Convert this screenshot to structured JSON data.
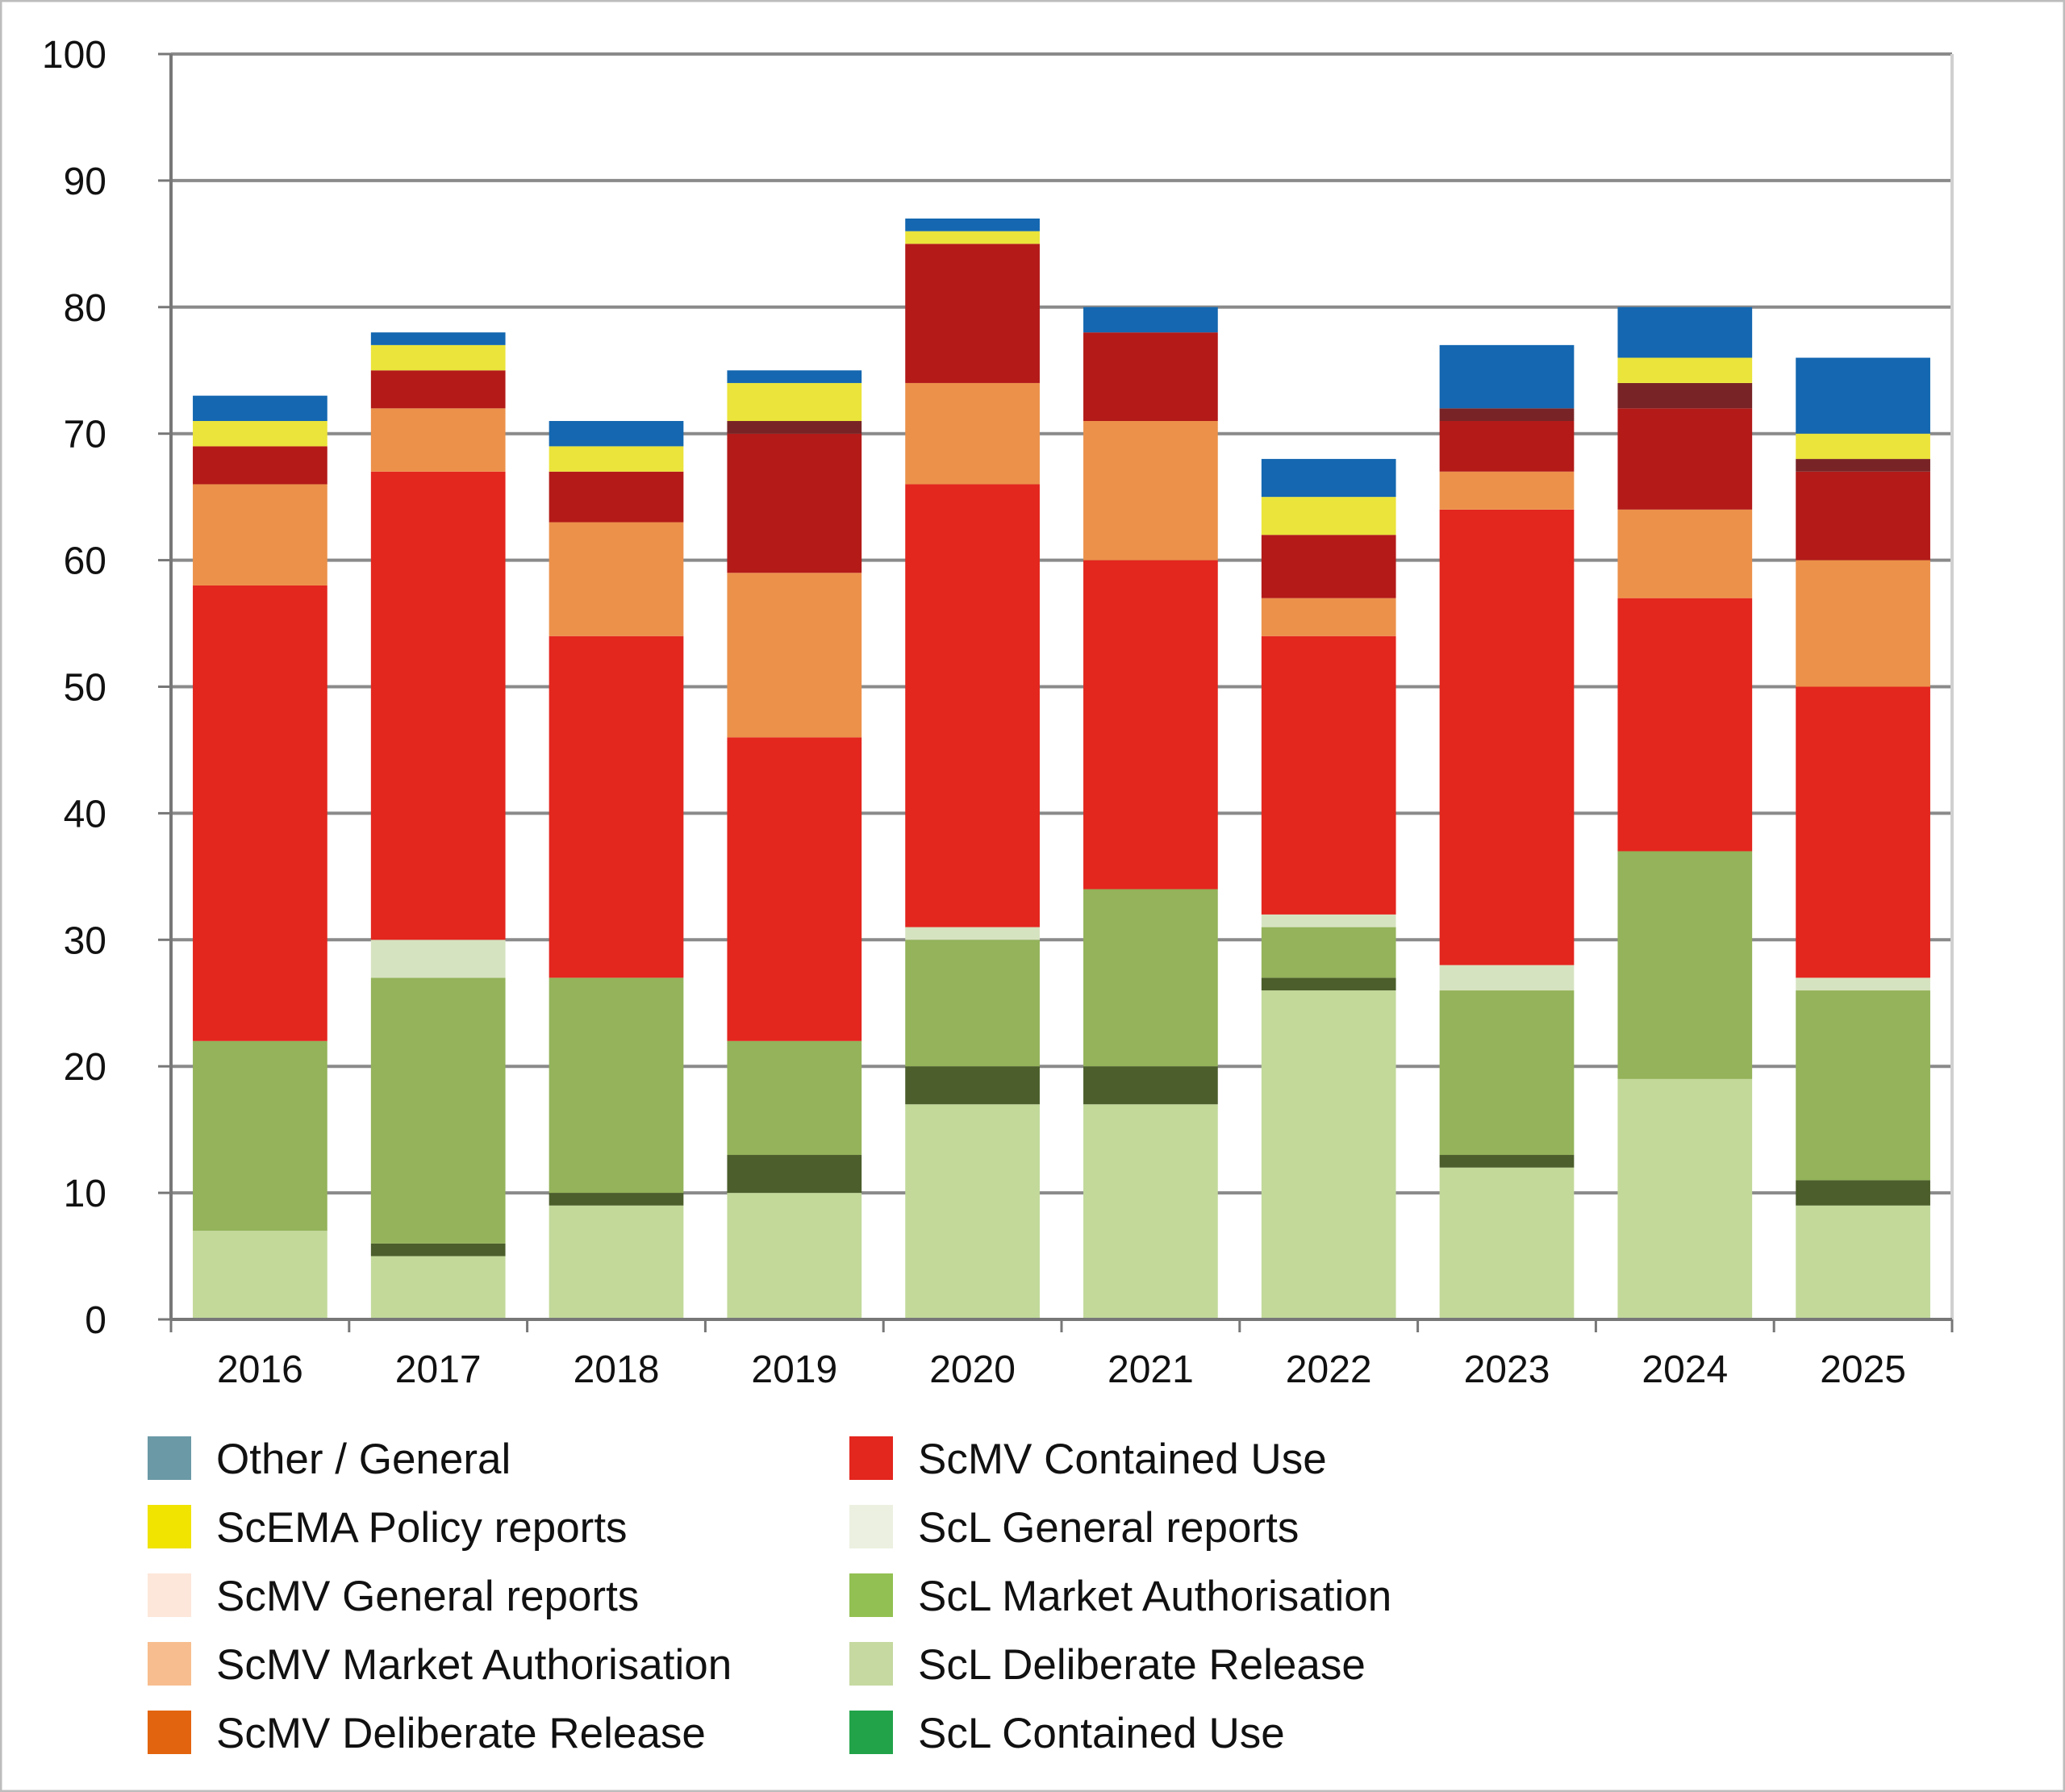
{
  "chart_data": {
    "type": "bar",
    "stacked": true,
    "categories": [
      "2016",
      "2017",
      "2018",
      "2019",
      "2020",
      "2021",
      "2022",
      "2023",
      "2024",
      "2025"
    ],
    "ylim": [
      0,
      100
    ],
    "yticks": [
      0,
      10,
      20,
      30,
      40,
      50,
      60,
      70,
      80,
      90,
      100
    ],
    "grid": true,
    "legend_placement": "bottom",
    "series": [
      {
        "name": "ScL Deliberate Release",
        "color": "#c2d99a",
        "values": [
          7,
          5,
          9,
          10,
          17,
          17,
          26,
          12,
          19,
          9
        ]
      },
      {
        "name": "ScL Contained Use",
        "color": "#4b5e2b",
        "values": [
          0,
          1,
          1,
          3,
          3,
          3,
          1,
          1,
          0,
          2
        ]
      },
      {
        "name": "ScL Market Authorisation",
        "color": "#94b35a",
        "values": [
          15,
          21,
          17,
          9,
          10,
          14,
          4,
          13,
          18,
          15
        ]
      },
      {
        "name": "ScL General reports",
        "color": "#d6e3c0",
        "values": [
          0,
          3,
          0,
          0,
          1,
          0,
          1,
          2,
          0,
          1
        ]
      },
      {
        "name": "ScMV Contained Use",
        "color": "#e3261e",
        "values": [
          36,
          37,
          27,
          24,
          35,
          26,
          22,
          36,
          20,
          23
        ]
      },
      {
        "name": "ScMV Market Authorisation",
        "color": "#ec914a",
        "values": [
          8,
          5,
          9,
          13,
          8,
          11,
          3,
          3,
          7,
          10
        ]
      },
      {
        "name": "ScMV Deliberate Release",
        "color": "#b31a18",
        "values": [
          3,
          3,
          4,
          11,
          11,
          7,
          5,
          4,
          8,
          7
        ]
      },
      {
        "name": "ScMV General reports",
        "color": "#782426",
        "values": [
          0,
          0,
          0,
          1,
          0,
          0,
          0,
          1,
          2,
          1
        ]
      },
      {
        "name": "ScEMA Policy reports",
        "color": "#ebe43a",
        "values": [
          2,
          2,
          2,
          3,
          1,
          0,
          3,
          0,
          2,
          2
        ]
      },
      {
        "name": "Other / General",
        "color": "#1467b0",
        "values": [
          2,
          1,
          2,
          1,
          1,
          2,
          3,
          5,
          4,
          6
        ]
      }
    ],
    "legend": [
      {
        "label": "Other / General",
        "color": "#6b99a6"
      },
      {
        "label": "ScEMA Policy reports",
        "color": "#f0e400"
      },
      {
        "label": "ScMV General reports",
        "color": "#fde6da"
      },
      {
        "label": "ScMV Market Authorisation",
        "color": "#f8bd8e"
      },
      {
        "label": "ScMV Deliberate Release",
        "color": "#e3640f"
      },
      {
        "label": "ScMV Contained Use",
        "color": "#e3261e"
      },
      {
        "label": "ScL General reports",
        "color": "#ebf0e0"
      },
      {
        "label": "ScL Market Authorisation",
        "color": "#92c052"
      },
      {
        "label": "ScL Deliberate Release",
        "color": "#c5d9a0"
      },
      {
        "label": "ScL Contained Use",
        "color": "#22a34a"
      }
    ]
  }
}
